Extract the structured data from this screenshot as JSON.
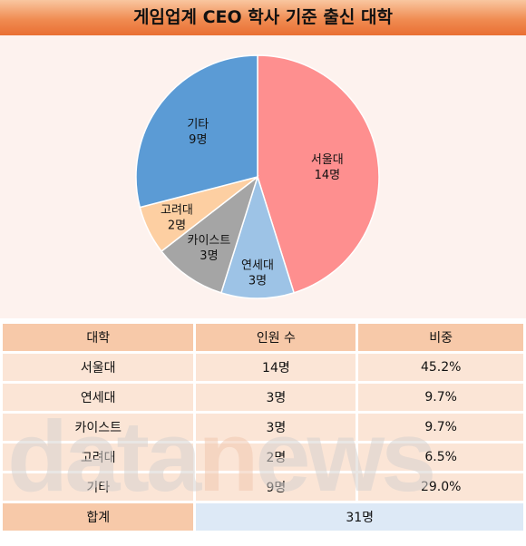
{
  "title": "게임업계 CEO 학사 기준 출신 대학",
  "chart_data": {
    "type": "pie",
    "start_angle_deg": 0,
    "direction": "clockwise",
    "slices": [
      {
        "name": "서울대",
        "label": "14명",
        "value": 14,
        "color": "#fe8f8f"
      },
      {
        "name": "연세대",
        "label": "3명",
        "value": 3,
        "color": "#9dc3e6"
      },
      {
        "name": "카이스트",
        "label": "3명",
        "value": 3,
        "color": "#a5a5a5"
      },
      {
        "name": "고려대",
        "label": "2명",
        "value": 2,
        "color": "#fdcfa2"
      },
      {
        "name": "기타",
        "label": "9명",
        "value": 9,
        "color": "#5b9bd5"
      }
    ]
  },
  "table": {
    "headers": [
      "대학",
      "인원 수",
      "비중"
    ],
    "rows": [
      [
        "서울대",
        "14명",
        "45.2%"
      ],
      [
        "연세대",
        "3명",
        "9.7%"
      ],
      [
        "카이스트",
        "3명",
        "9.7%"
      ],
      [
        "고려대",
        "2명",
        "6.5%"
      ],
      [
        "기타",
        "9명",
        "29.0%"
      ]
    ],
    "total_label": "합계",
    "total_value": "31명"
  },
  "watermark": {
    "part1": "data",
    "part2": "n",
    "part3": "ews"
  }
}
